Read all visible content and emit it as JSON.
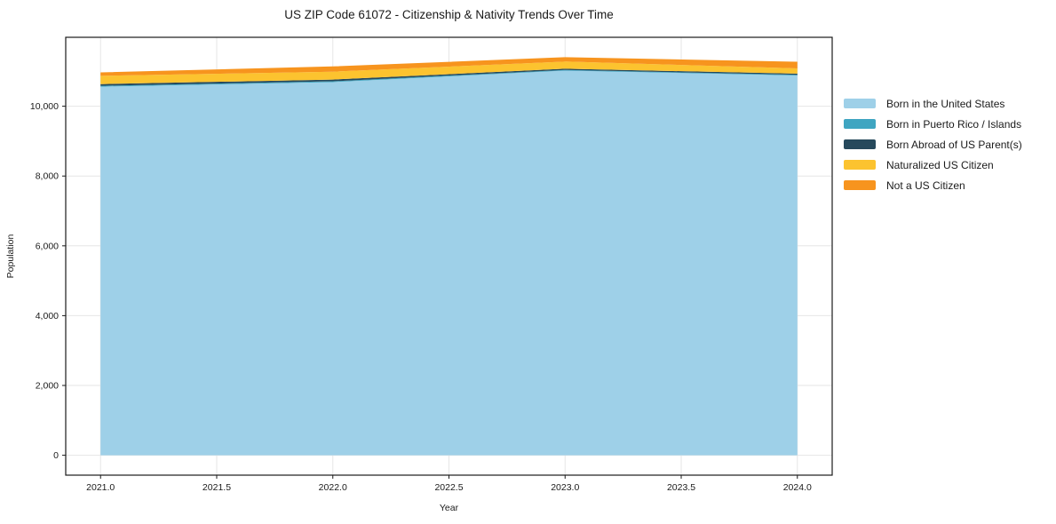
{
  "chart_data": {
    "type": "area",
    "stacked": true,
    "title": "US ZIP Code 61072 - Citizenship & Nativity Trends Over Time",
    "xlabel": "Year",
    "ylabel": "Population",
    "x": [
      2021,
      2022,
      2023,
      2024
    ],
    "series": [
      {
        "name": "Born in the United States",
        "color": "#9ed0e8",
        "values": [
          10560,
          10690,
          11020,
          10880
        ]
      },
      {
        "name": "Born in Puerto Rico / Islands",
        "color": "#3fa5c1",
        "values": [
          25,
          25,
          20,
          20
        ]
      },
      {
        "name": "Born Abroad of US Parent(s)",
        "color": "#26495c",
        "values": [
          50,
          50,
          35,
          35
        ]
      },
      {
        "name": "Naturalized US Citizen",
        "color": "#fcc32f",
        "values": [
          235,
          225,
          205,
          150
        ]
      },
      {
        "name": "Not a US Citizen",
        "color": "#f7941e",
        "values": [
          100,
          150,
          125,
          190
        ]
      }
    ],
    "xticks": [
      {
        "v": 2021.0,
        "label": "2021.0"
      },
      {
        "v": 2021.5,
        "label": "2021.5"
      },
      {
        "v": 2022.0,
        "label": "2022.0"
      },
      {
        "v": 2022.5,
        "label": "2022.5"
      },
      {
        "v": 2023.0,
        "label": "2023.0"
      },
      {
        "v": 2023.5,
        "label": "2023.5"
      },
      {
        "v": 2024.0,
        "label": "2024.0"
      }
    ],
    "yticks": [
      {
        "v": 0,
        "label": "0"
      },
      {
        "v": 2000,
        "label": "2,000"
      },
      {
        "v": 4000,
        "label": "4,000"
      },
      {
        "v": 6000,
        "label": "6,000"
      },
      {
        "v": 8000,
        "label": "8,000"
      },
      {
        "v": 10000,
        "label": "10,000"
      }
    ],
    "xlim": [
      2020.85,
      2024.15
    ],
    "ylim": [
      -570,
      11975
    ],
    "grid": true,
    "legend_position": "right"
  },
  "palette": {
    "grid": "#e6e6e6",
    "spine": "#1a1a1a",
    "tick_text": "#1a1a1a",
    "background": "#ffffff"
  }
}
